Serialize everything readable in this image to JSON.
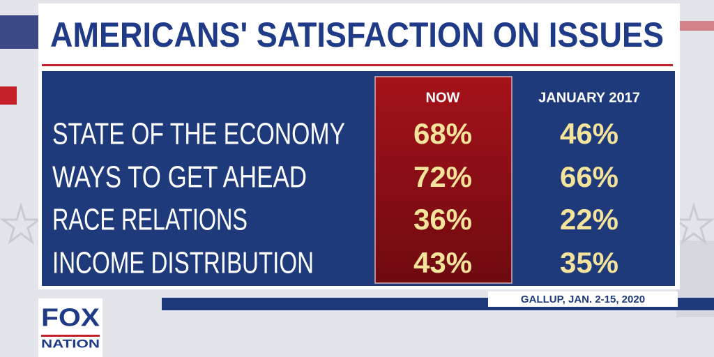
{
  "header": {
    "title": "AMERICANS' SATISFACTION ON ISSUES"
  },
  "table": {
    "columns": [
      "NOW",
      "JANUARY 2017"
    ],
    "rows": [
      [
        "STATE OF THE ECONOMY",
        "68%",
        "46%"
      ],
      [
        "WAYS TO GET AHEAD",
        "72%",
        "66%"
      ],
      [
        "RACE RELATIONS",
        "36%",
        "22%"
      ],
      [
        "INCOME DISTRIBUTION",
        "43%",
        "35%"
      ]
    ]
  },
  "source": "GALLUP, JAN. 2-15, 2020",
  "logo": {
    "line1": "FOX",
    "line2": "NATION"
  }
}
